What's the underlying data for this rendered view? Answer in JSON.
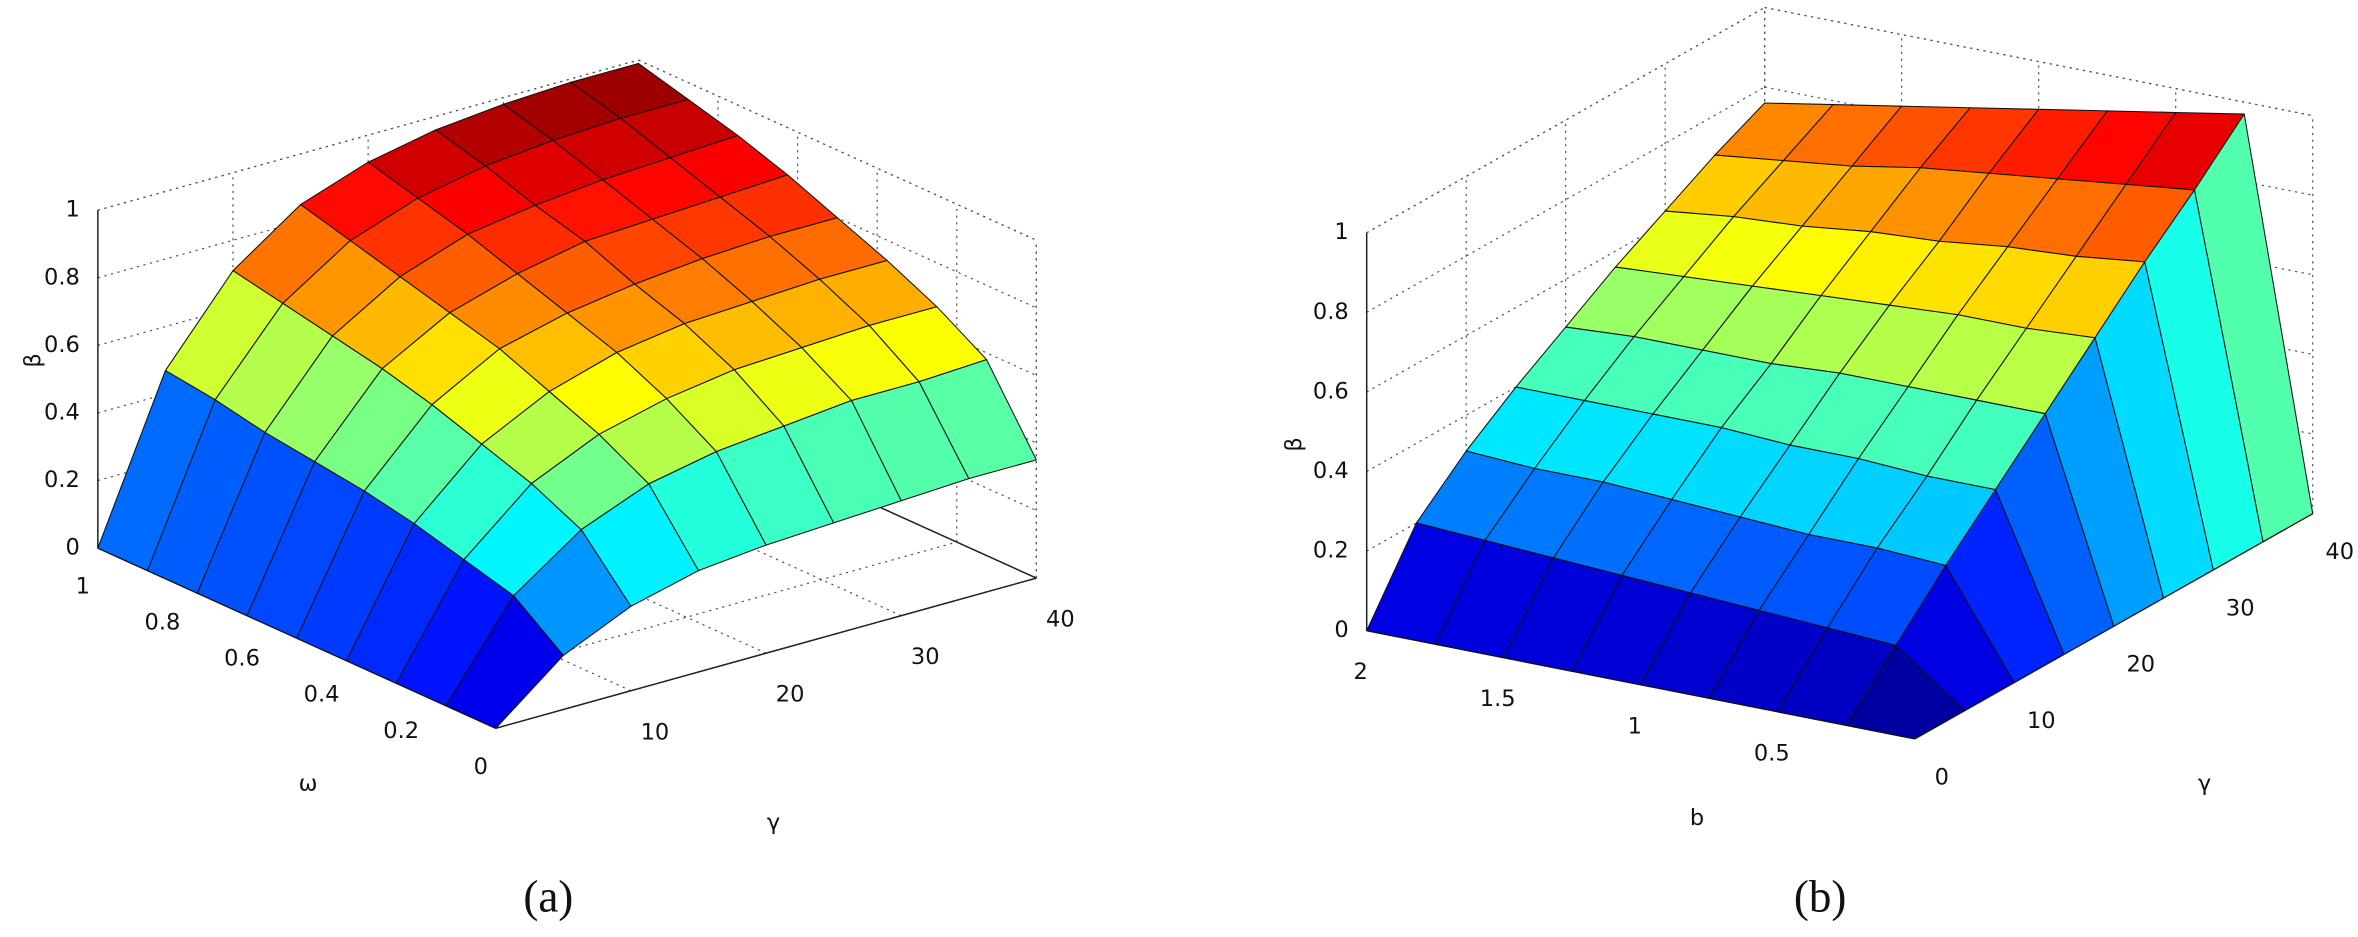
{
  "chart_data": [
    {
      "type": "surface",
      "caption": "(a)",
      "xlabel": "γ",
      "ylabel": "ω",
      "zlabel": "β",
      "colormap": "jet",
      "grid": true,
      "x": [
        0,
        5,
        10,
        15,
        20,
        25,
        30,
        35,
        40
      ],
      "y": [
        0,
        0.125,
        0.25,
        0.375,
        0.5,
        0.625,
        0.75,
        0.875,
        1
      ],
      "z": [
        [
          0,
          0.16,
          0.25,
          0.3,
          0.32,
          0.33,
          0.34,
          0.35,
          0.35
        ],
        [
          0,
          0.27,
          0.41,
          0.49,
          0.53,
          0.55,
          0.57,
          0.57,
          0.58
        ],
        [
          0,
          0.31,
          0.48,
          0.57,
          0.62,
          0.65,
          0.66,
          0.67,
          0.67
        ],
        [
          0,
          0.35,
          0.53,
          0.63,
          0.69,
          0.72,
          0.73,
          0.74,
          0.74
        ],
        [
          0,
          0.38,
          0.58,
          0.69,
          0.74,
          0.77,
          0.79,
          0.8,
          0.8
        ],
        [
          0,
          0.4,
          0.62,
          0.73,
          0.79,
          0.83,
          0.84,
          0.85,
          0.86
        ],
        [
          0,
          0.42,
          0.65,
          0.77,
          0.84,
          0.87,
          0.89,
          0.9,
          0.91
        ],
        [
          0,
          0.45,
          0.68,
          0.81,
          0.88,
          0.92,
          0.94,
          0.95,
          0.95
        ],
        [
          0,
          0.47,
          0.71,
          0.85,
          0.92,
          0.96,
          0.98,
          0.99,
          0.99
        ]
      ],
      "xlim": [
        0,
        40
      ],
      "ylim": [
        0,
        1
      ],
      "zlim": [
        0,
        1
      ],
      "xticks": [
        10,
        20,
        30,
        40
      ],
      "yticks": [
        0,
        0.2,
        0.4,
        0.6,
        0.8,
        1
      ],
      "zticks": [
        0,
        0.2,
        0.4,
        0.6,
        0.8,
        1
      ]
    },
    {
      "type": "surface",
      "caption": "(b)",
      "xlabel": "γ",
      "ylabel": "b",
      "zlabel": "β",
      "colormap": "jet",
      "grid": true,
      "x": [
        0,
        5,
        10,
        15,
        20,
        25,
        30,
        35,
        40
      ],
      "y": [
        0,
        0.25,
        0.5,
        0.75,
        1,
        1.25,
        1.5,
        1.75,
        2
      ],
      "z": [
        [
          0,
          0,
          0,
          0,
          0,
          0,
          0,
          0,
          0
        ],
        [
          0,
          0.13,
          0.26,
          0.38,
          0.5,
          0.62,
          0.74,
          0.85,
          0.97
        ],
        [
          0,
          0.14,
          0.27,
          0.38,
          0.5,
          0.61,
          0.72,
          0.83,
          0.94
        ],
        [
          0,
          0.15,
          0.27,
          0.39,
          0.5,
          0.61,
          0.71,
          0.81,
          0.91
        ],
        [
          0,
          0.16,
          0.28,
          0.39,
          0.5,
          0.6,
          0.69,
          0.79,
          0.88
        ],
        [
          0,
          0.17,
          0.29,
          0.4,
          0.49,
          0.59,
          0.68,
          0.77,
          0.85
        ],
        [
          0,
          0.18,
          0.3,
          0.4,
          0.49,
          0.58,
          0.66,
          0.74,
          0.82
        ],
        [
          0,
          0.19,
          0.3,
          0.4,
          0.49,
          0.57,
          0.65,
          0.72,
          0.79
        ],
        [
          0,
          0.2,
          0.31,
          0.4,
          0.48,
          0.56,
          0.63,
          0.7,
          0.76
        ]
      ],
      "xlim": [
        0,
        40
      ],
      "ylim": [
        0,
        2
      ],
      "zlim": [
        0,
        1
      ],
      "xticks": [
        0,
        10,
        20,
        30,
        40
      ],
      "yticks": [
        0.5,
        1,
        1.5,
        2
      ],
      "zticks": [
        0,
        0.2,
        0.4,
        0.6,
        0.8,
        1
      ]
    }
  ]
}
